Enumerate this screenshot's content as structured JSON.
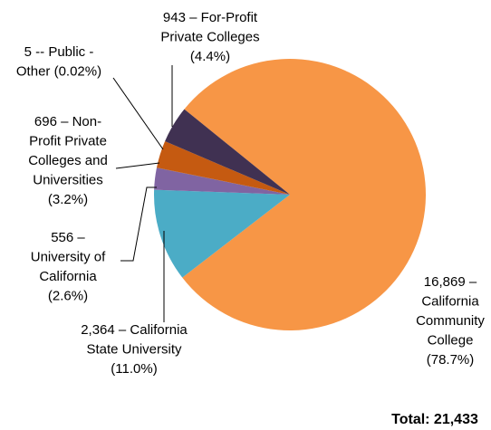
{
  "chart_data": {
    "type": "pie",
    "labels": [
      [
        "16,869 –",
        "California",
        "Community",
        "College",
        "(78.7%)"
      ],
      [
        "2,364 – California",
        "State University",
        "(11.0%)"
      ],
      [
        "556 –",
        "University of",
        "California",
        "(2.6%)"
      ],
      [
        "5 -- Public -",
        "Other (0.02%)"
      ],
      [
        "696 – Non-",
        "Profit Private",
        "Colleges and",
        "Universities",
        "(3.2%)"
      ],
      [
        "943 – For-Profit",
        "Private Colleges",
        "(4.4%)"
      ]
    ],
    "values": [
      16869,
      2364,
      556,
      5,
      696,
      943
    ],
    "colors": [
      "#f79646",
      "#4bacc6",
      "#8064a2",
      "#7f3f1f",
      "#c55a11",
      "#403152"
    ],
    "total": "Total: 21,433"
  }
}
